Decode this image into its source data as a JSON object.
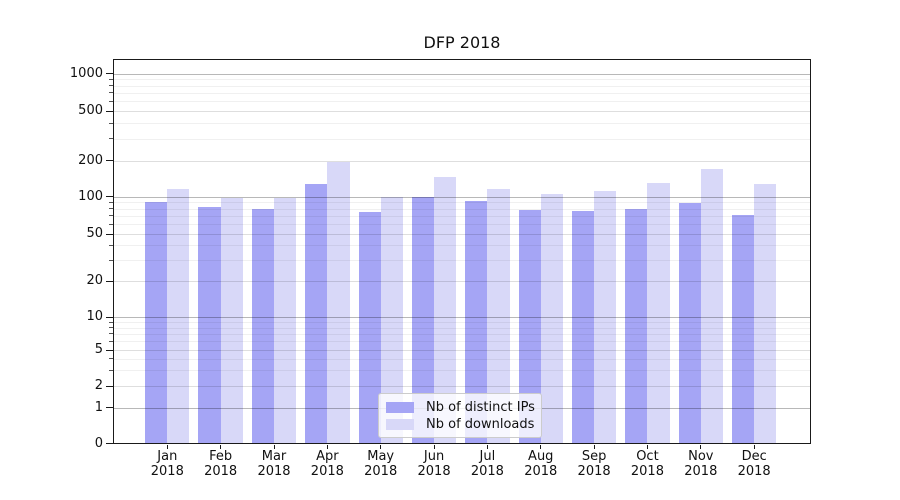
{
  "chart_data": {
    "type": "bar",
    "title": "DFP 2018",
    "categories": [
      "Jan 2018",
      "Feb 2018",
      "Mar 2018",
      "Apr 2018",
      "May 2018",
      "Jun 2018",
      "Jul 2018",
      "Aug 2018",
      "Sep 2018",
      "Oct 2018",
      "Nov 2018",
      "Dec 2018"
    ],
    "x_tick_labels": {
      "months": [
        "Jan",
        "Feb",
        "Mar",
        "Apr",
        "May",
        "Jun",
        "Jul",
        "Aug",
        "Sep",
        "Oct",
        "Nov",
        "Dec"
      ],
      "year": "2018"
    },
    "series": [
      {
        "name": "Nb of distinct IPs",
        "color": "#a5a5f5",
        "values": [
          90,
          82,
          79,
          128,
          75,
          99,
          92,
          78,
          76,
          80,
          88,
          71
        ]
      },
      {
        "name": "Nb of downloads",
        "color": "#d8d8f8",
        "values": [
          115,
          97,
          98,
          195,
          100,
          145,
          115,
          104,
          112,
          130,
          170,
          128
        ]
      }
    ],
    "yscale": "symlog",
    "y_ticks": [
      0,
      1,
      2,
      5,
      10,
      20,
      50,
      100,
      200,
      500,
      1000
    ],
    "y_minor_ticks": [
      3,
      4,
      6,
      7,
      8,
      9,
      30,
      40,
      60,
      70,
      80,
      90,
      300,
      400,
      600,
      700,
      800,
      900
    ],
    "ylim": [
      0,
      1300
    ],
    "grid": true,
    "legend_position": "lower center"
  }
}
